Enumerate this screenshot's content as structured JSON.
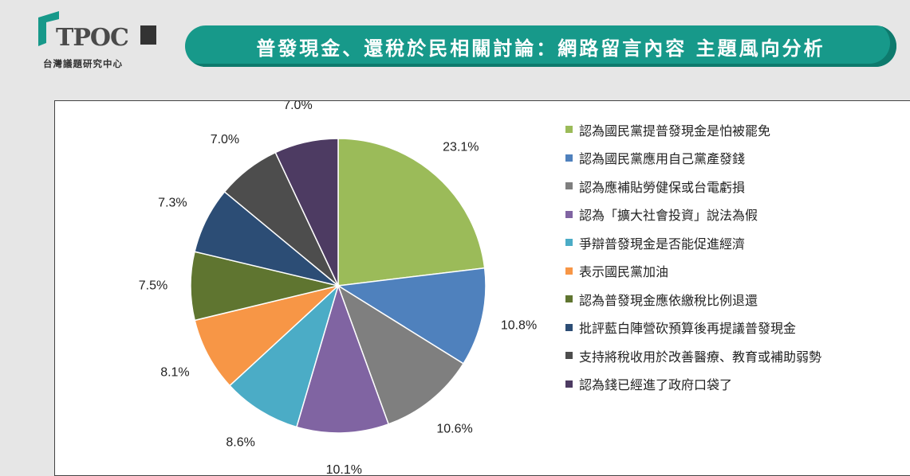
{
  "header": {
    "logo_text": "TPOC",
    "logo_subtitle": "台灣議題研究中心",
    "title": "普發現金、還稅於民相關討論：網路留言內容 主題風向分析"
  },
  "chart_data": {
    "type": "pie",
    "title": "",
    "start_angle": "12 o'clock, clockwise",
    "legend_position": "right",
    "slices": [
      {
        "label": "認為國民黨提普發現金是怕被罷免",
        "value": 23.1,
        "value_text": "23.1%",
        "color": "#9bbb59"
      },
      {
        "label": "認為國民黨應用自己黨產發錢",
        "value": 10.8,
        "value_text": "10.8%",
        "color": "#4f81bd"
      },
      {
        "label": "認為應補貼勞健保或台電虧損",
        "value": 10.6,
        "value_text": "10.6%",
        "color": "#7f7f7f"
      },
      {
        "label": "認為「擴大社會投資」說法為假",
        "value": 10.1,
        "value_text": "10.1%",
        "color": "#8064a2"
      },
      {
        "label": "爭辯普發現金是否能促進經濟",
        "value": 8.6,
        "value_text": "8.6%",
        "color": "#4bacc6"
      },
      {
        "label": "表示國民黨加油",
        "value": 8.1,
        "value_text": "8.1%",
        "color": "#f79646"
      },
      {
        "label": "認為普發現金應依繳稅比例退還",
        "value": 7.5,
        "value_text": "7.5%",
        "color": "#5f7530"
      },
      {
        "label": "批評藍白陣營砍預算後再提議普發現金",
        "value": 7.3,
        "value_text": "7.3%",
        "color": "#2c4d75"
      },
      {
        "label": "支持將稅收用於改善醫療、教育或補助弱勢",
        "value": 7.0,
        "value_text": "7.0%",
        "color": "#4d4d4d"
      },
      {
        "label": "認為錢已經進了政府口袋了",
        "value": 7.0,
        "value_text": "7.0%",
        "color": "#4d3b62"
      }
    ]
  }
}
